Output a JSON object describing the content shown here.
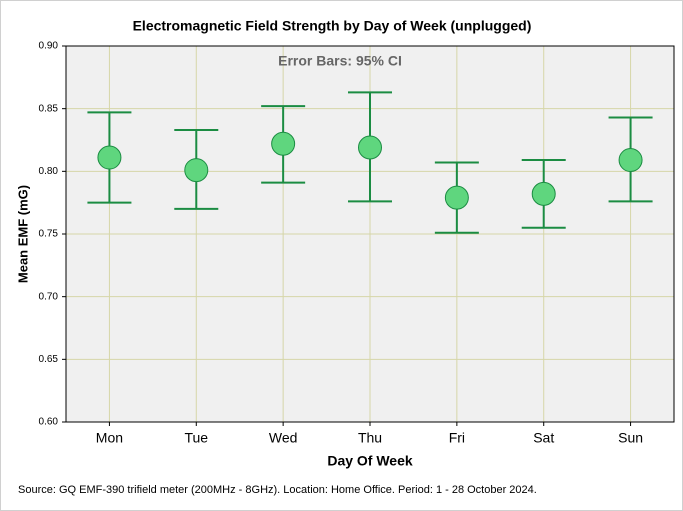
{
  "chart_data": {
    "type": "errorbar",
    "title": "Electromagnetic Field Strength by Day of Week (unplugged)",
    "annotation": "Error Bars: 95% CI",
    "x_label": "Day Of Week",
    "y_label": "Mean EMF (mG)",
    "source": "Source: GQ EMF-390 trifield meter (200MHz - 8GHz). Location: Home Office. Period: 1 - 28 October 2024.",
    "categories": [
      "Mon",
      "Tue",
      "Wed",
      "Thu",
      "Fri",
      "Sat",
      "Sun"
    ],
    "values": [
      0.811,
      0.801,
      0.822,
      0.819,
      0.779,
      0.782,
      0.809
    ],
    "ci_low": [
      0.775,
      0.77,
      0.791,
      0.776,
      0.751,
      0.755,
      0.776
    ],
    "ci_high": [
      0.847,
      0.833,
      0.852,
      0.863,
      0.807,
      0.809,
      0.843
    ],
    "color": "#5fd67e",
    "edge_color": "#1b8c42",
    "ylim": [
      0.6,
      0.9
    ],
    "yticks": [
      {
        "value": 0.6,
        "label": "0.60"
      },
      0.65,
      {
        "value": 0.7,
        "label": "0.70"
      },
      0.75,
      {
        "value": 0.8,
        "label": "0.80"
      },
      0.85,
      {
        "value": 0.9,
        "label": "0.90"
      }
    ],
    "grid": true
  }
}
